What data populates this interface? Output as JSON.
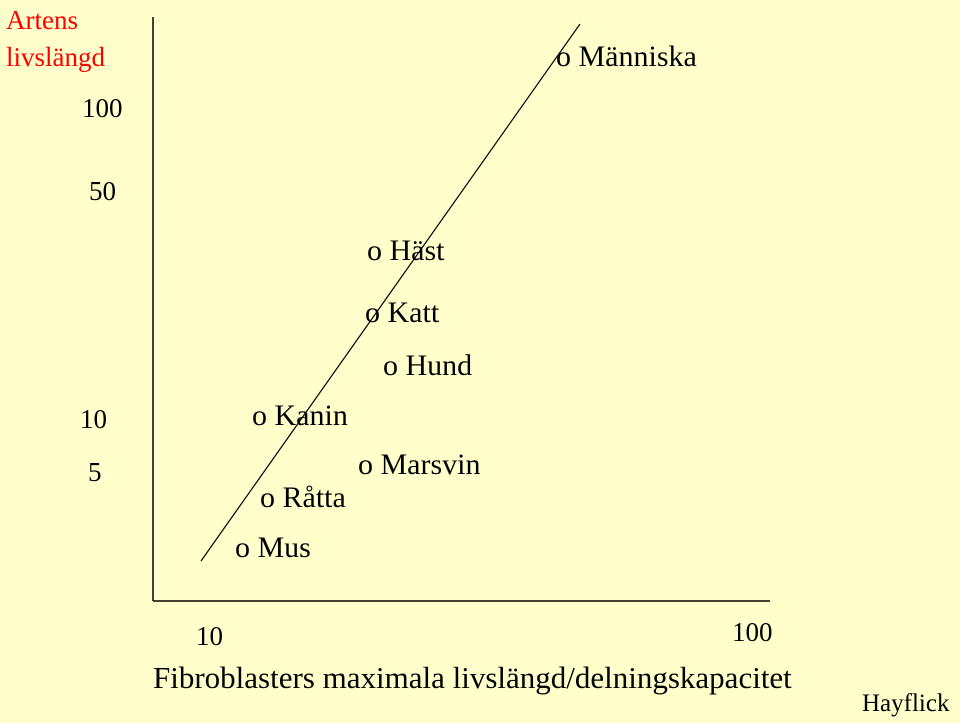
{
  "chart_data": {
    "type": "scatter",
    "title": "",
    "ylabel_lines": [
      "Artens",
      "livslängd"
    ],
    "xlabel": "Fibroblasters maximala livslängd/delningskapacitet",
    "credit": "Hayflick",
    "y_ticks": [
      "100",
      "50",
      "10",
      "5"
    ],
    "x_ticks": [
      "10",
      "100"
    ],
    "points": [
      {
        "marker": "o",
        "label": "Människa"
      },
      {
        "marker": "o",
        "label": "Häst"
      },
      {
        "marker": "o",
        "label": "Katt"
      },
      {
        "marker": "o",
        "label": "Hund"
      },
      {
        "marker": "o",
        "label": "Kanin"
      },
      {
        "marker": "o",
        "label": "Marsvin"
      },
      {
        "marker": "o",
        "label": "Råtta"
      },
      {
        "marker": "o",
        "label": "Mus"
      }
    ],
    "trend_line": true,
    "grid": false,
    "colors": {
      "background": "#ffffcc",
      "ylabel": "#ff0000",
      "text": "#000000"
    }
  }
}
